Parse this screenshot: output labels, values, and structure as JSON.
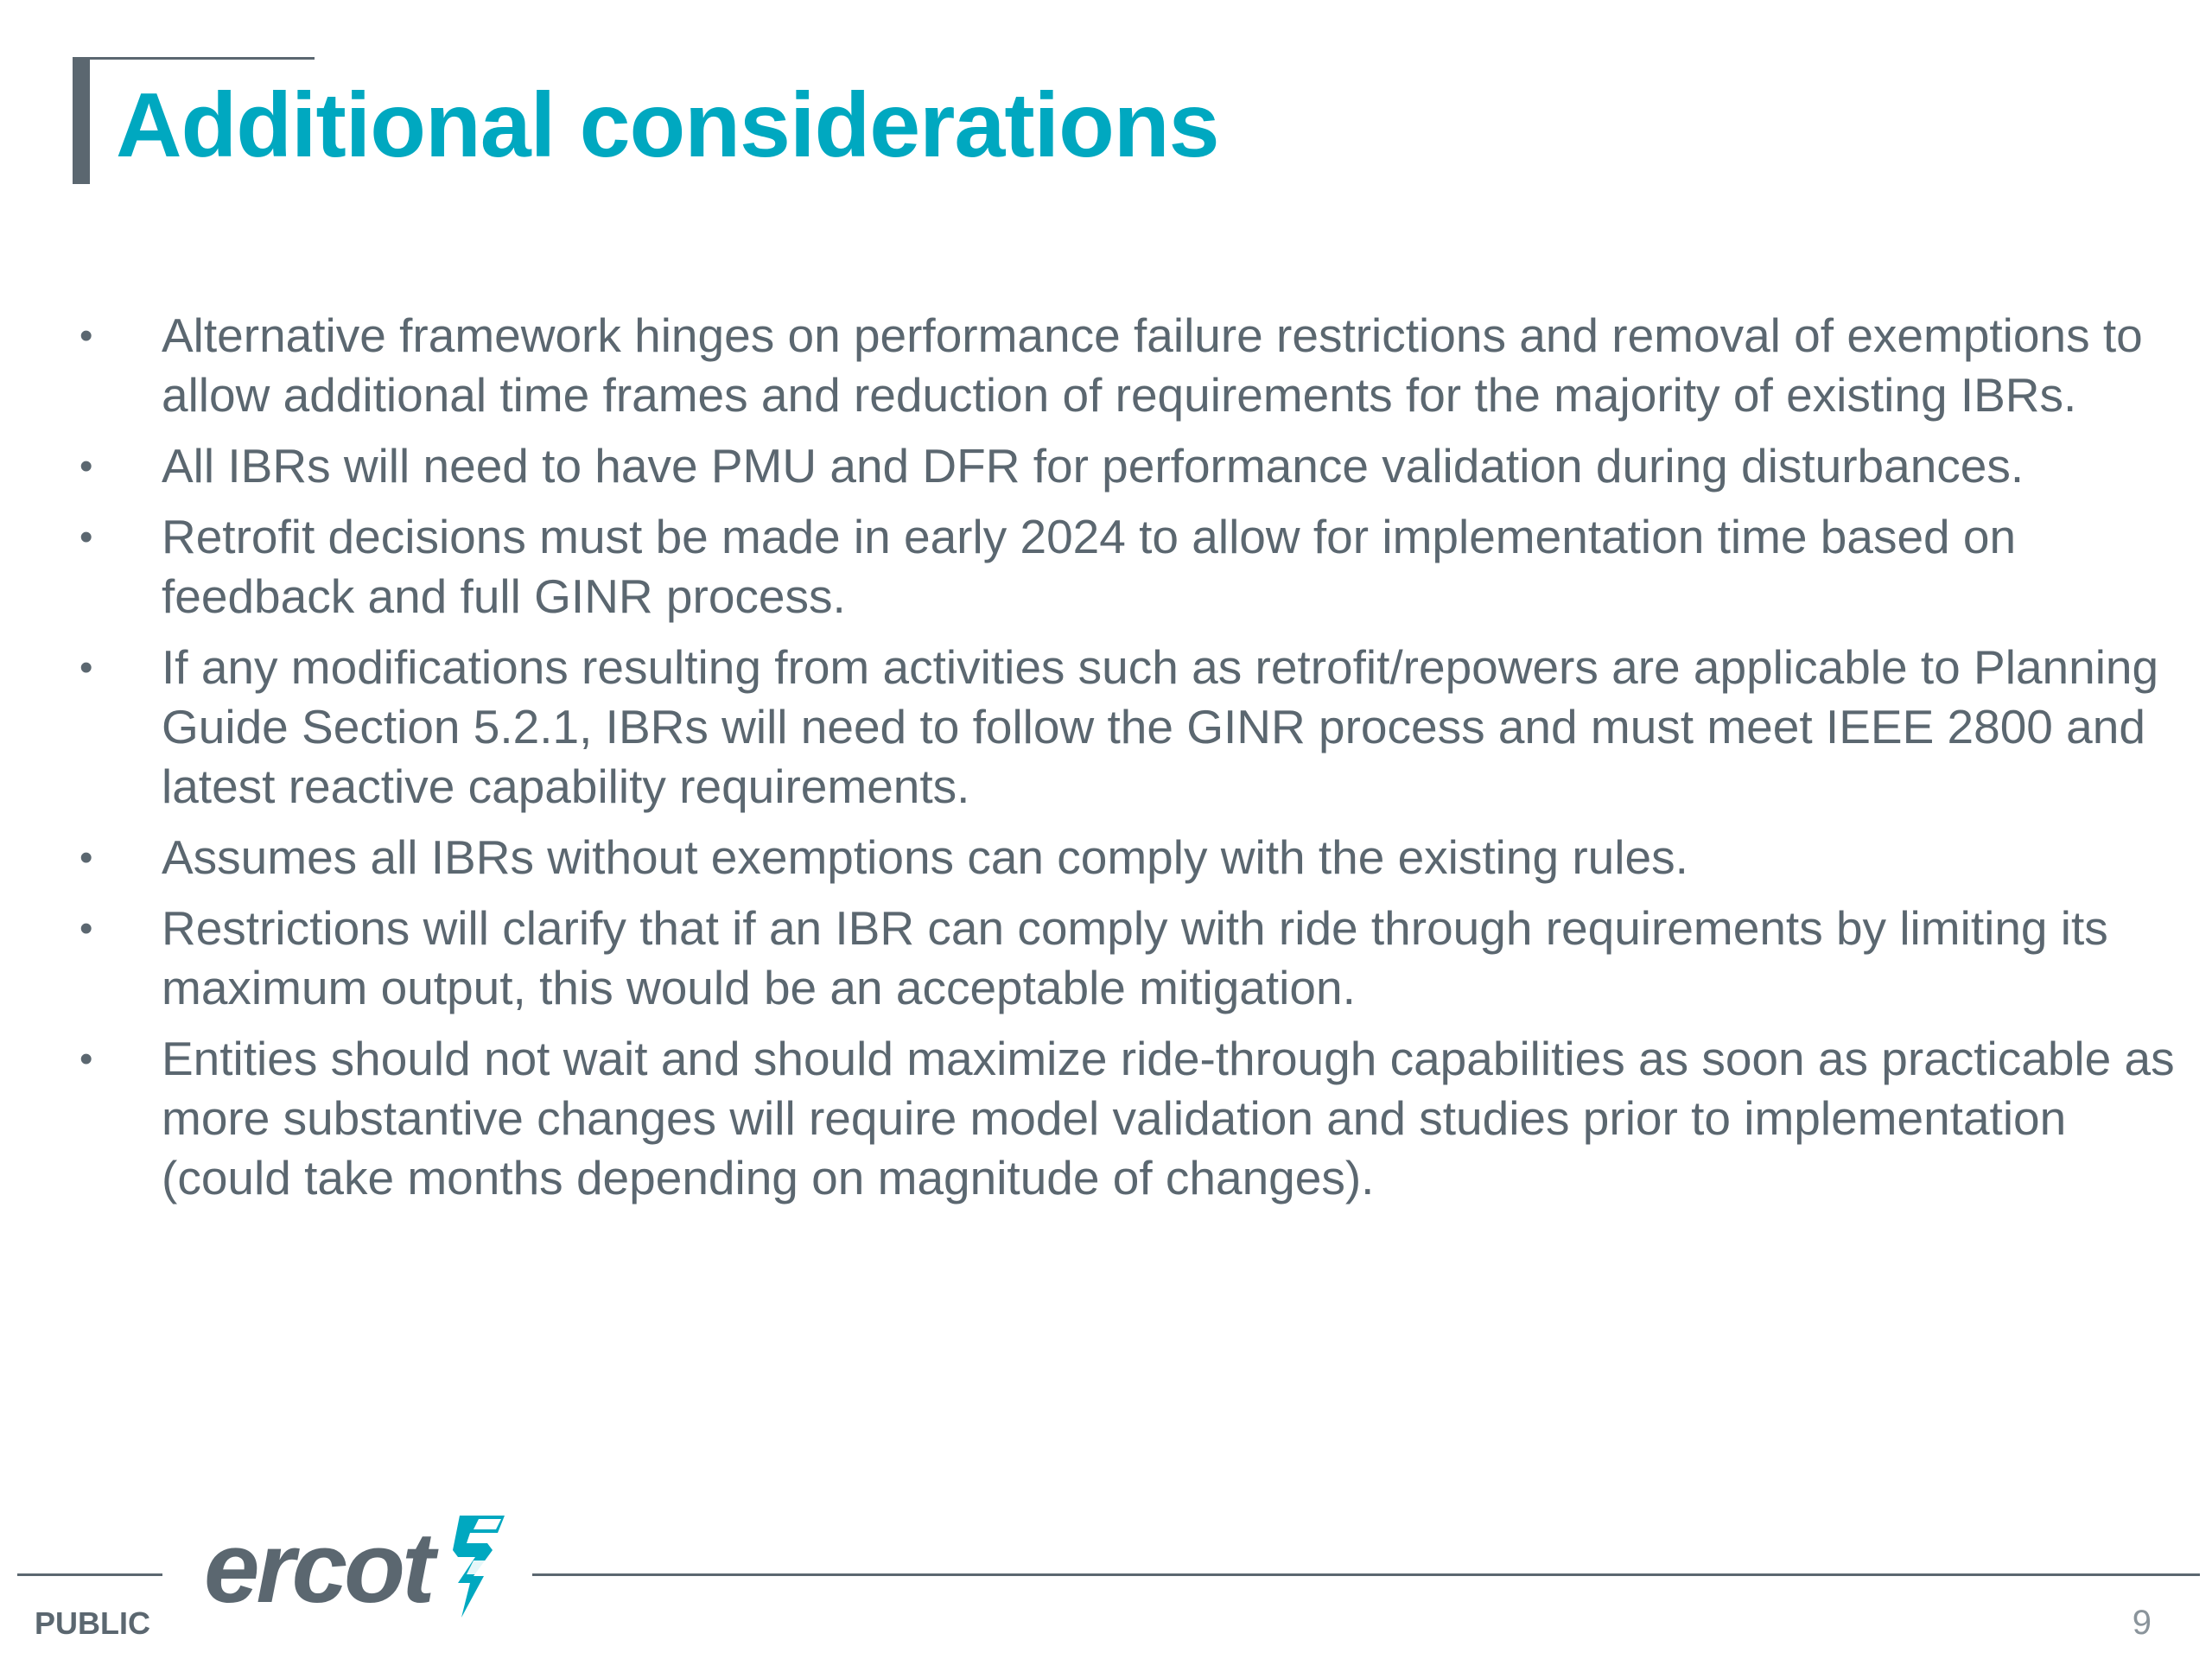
{
  "slide": {
    "title": "Additional considerations",
    "bullets": [
      "Alternative framework hinges on performance failure restrictions and removal of exemptions to allow additional time frames and reduction of requirements for the majority of existing IBRs.",
      "All IBRs will need to have PMU and DFR for performance validation during disturbances.",
      "Retrofit decisions must be made in early 2024 to allow for implementation time based on feedback and full GINR process.",
      "If any modifications resulting from activities such as retrofit/repowers are applicable to Planning Guide Section 5.2.1, IBRs will need to follow the GINR process and must meet IEEE 2800 and latest reactive capability requirements.",
      "Assumes all IBRs without exemptions can comply with the existing rules.",
      "Restrictions will clarify that if an IBR can comply with ride through requirements by limiting its maximum output, this would be an acceptable mitigation.",
      "Entities should not wait and should maximize ride-through capabilities as soon as practicable as more substantive changes will require model validation and studies prior to implementation (could take months depending on magnitude of changes)."
    ],
    "bullet_glyph": "•"
  },
  "footer": {
    "label": "PUBLIC",
    "logo_text": "ercot",
    "logo_icon": "ercot-bolt-icon",
    "page_number": "9"
  },
  "colors": {
    "title": "#00a8c0",
    "body_text": "#5b6770",
    "accent": "#5b6770",
    "logo_mark": "#00a8c0"
  }
}
